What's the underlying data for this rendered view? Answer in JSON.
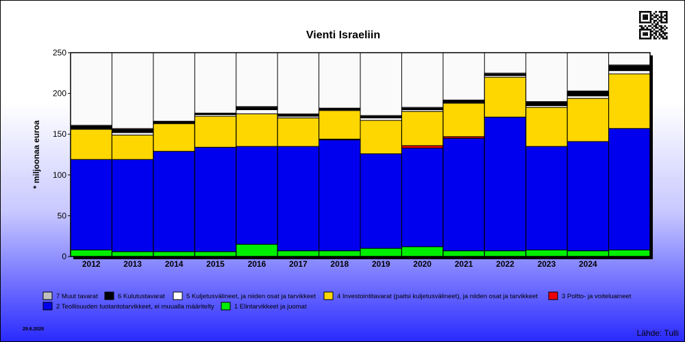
{
  "chart_data": {
    "type": "bar",
    "stacked": true,
    "title": "Vienti Israeliin",
    "ylabel": "* miljoonaa euroa",
    "ylim": [
      0,
      250
    ],
    "yticks": [
      0,
      50,
      100,
      150,
      200,
      250
    ],
    "grid": true,
    "categories": [
      "2012",
      "2013",
      "2014",
      "2015",
      "2016",
      "2017",
      "2018",
      "2019",
      "2020",
      "2021",
      "2022",
      "2023",
      "2024",
      ""
    ],
    "series": [
      {
        "name": "1 Elintarvikkeet ja juomat",
        "color": "#00ee00",
        "values": [
          8,
          6,
          6,
          6,
          15,
          7,
          7,
          10,
          12,
          7,
          7,
          8,
          7,
          8
        ]
      },
      {
        "name": "2 Teollisuuden tuotantotarvikkeet, ei muualla määritelty",
        "color": "#0000ee",
        "values": [
          111,
          113,
          123,
          128,
          120,
          128,
          136,
          116,
          121,
          138,
          164,
          127,
          134,
          149
        ]
      },
      {
        "name": "3 Poltto- ja voiteluaineet",
        "color": "#ee0000",
        "values": [
          0,
          0,
          0,
          0,
          0,
          0,
          1,
          0,
          3,
          2,
          0,
          0,
          0,
          0
        ]
      },
      {
        "name": "4 Investointitavarat (paitsi kuljetusvälineet), ja niiden osat ja tarvikkeet",
        "color": "#ffd700",
        "values": [
          37,
          30,
          34,
          38,
          40,
          35,
          35,
          41,
          42,
          41,
          49,
          48,
          53,
          67
        ]
      },
      {
        "name": "5 Kuljetusvälineet, ja niiden osat ja tarvikkeet",
        "color": "#ffffff",
        "values": [
          1,
          3,
          0,
          2,
          5,
          2,
          1,
          3,
          2,
          1,
          2,
          2,
          3,
          4
        ]
      },
      {
        "name": "6 Kulutustavarat",
        "color": "#000000",
        "values": [
          3,
          4,
          3,
          2,
          3,
          2,
          2,
          2,
          2,
          3,
          2,
          5,
          6,
          6
        ]
      },
      {
        "name": "7 Muut tavarat",
        "color": "#c0c0c0",
        "values": [
          1,
          1,
          0,
          0,
          1,
          1,
          0,
          1,
          1,
          0,
          1,
          0,
          0,
          1
        ]
      }
    ],
    "legend_position": "bottom"
  },
  "date": "29.6.2026",
  "source": "Lähde: Tulli",
  "qr_icon": "qr-code-icon"
}
